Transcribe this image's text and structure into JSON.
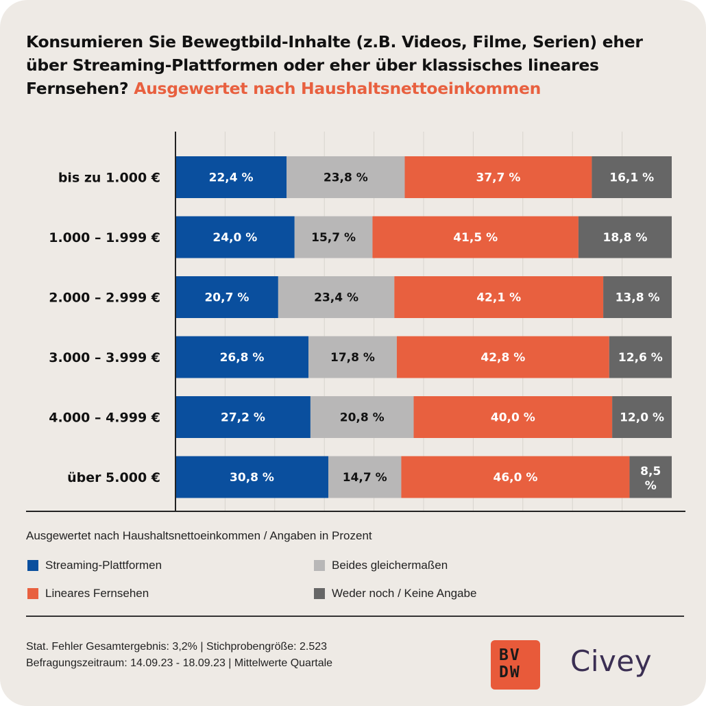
{
  "title": {
    "main": "Konsumieren Sie Bewegtbild-Inhalte (z.B. Videos, Filme, Serien) eher über Streaming-Plattformen oder eher über klassisches lineares Fernsehen?",
    "highlight": "Ausgewertet nach Haushaltsnettoeinkommen"
  },
  "subtitle": "Ausgewertet nach Haushaltsnettoeinkommen / Angaben in Prozent",
  "colors": {
    "streaming": "#0a4f9e",
    "beides": "#b8b7b7",
    "linear": "#e8603f",
    "weder": "#666666",
    "accent": "#e8603f",
    "background": "#eeeae5"
  },
  "chart_data": {
    "type": "bar",
    "orientation": "horizontal",
    "stacked": true,
    "categories": [
      "bis zu 1.000 €",
      "1.000 – 1.999 €",
      "2.000 – 2.999 €",
      "3.000 – 3.999 €",
      "4.000 – 4.999 €",
      "über 5.000 €"
    ],
    "series": [
      {
        "name": "Streaming-Plattformen",
        "values": [
          22.4,
          24.0,
          20.7,
          26.8,
          27.2,
          30.8
        ],
        "labels": [
          "22,4 %",
          "24,0 %",
          "20,7 %",
          "26,8 %",
          "27,2 %",
          "30,8 %"
        ]
      },
      {
        "name": "Beides gleichermaßen",
        "values": [
          23.8,
          15.7,
          23.4,
          17.8,
          20.8,
          14.7
        ],
        "labels": [
          "23,8 %",
          "15,7 %",
          "23,4 %",
          "17,8 %",
          "20,8 %",
          "14,7 %"
        ]
      },
      {
        "name": "Lineares Fernsehen",
        "values": [
          37.7,
          41.5,
          42.1,
          42.8,
          40.0,
          46.0
        ],
        "labels": [
          "37,7 %",
          "41,5 %",
          "42,1 %",
          "42,8 %",
          "40,0 %",
          "46,0 %"
        ]
      },
      {
        "name": "Weder noch / Keine Angabe",
        "values": [
          16.1,
          18.8,
          13.8,
          12.6,
          12.0,
          8.5
        ],
        "labels": [
          "16,1 %",
          "18,8 %",
          "13,8 %",
          "12,6 %",
          "12,0 %",
          "8,5 %"
        ]
      }
    ],
    "xlim": [
      0,
      100
    ],
    "grid": true,
    "legend_position": "bottom"
  },
  "legend": [
    {
      "label": "Streaming-Plattformen",
      "color_key": "streaming"
    },
    {
      "label": "Beides gleichermaßen",
      "color_key": "beides"
    },
    {
      "label": "Lineares Fernsehen",
      "color_key": "linear"
    },
    {
      "label": "Weder noch / Keine Angabe",
      "color_key": "weder"
    }
  ],
  "footer": {
    "line1": "Stat. Fehler Gesamtergebnis: 3,2% | Stichprobengröße: 2.523",
    "line2": "Befragungszeitraum: 14.09.23 - 18.09.23 | Mittelwerte Quartale"
  },
  "logos": {
    "bvdw": "BVDW",
    "civey": "Civey"
  }
}
